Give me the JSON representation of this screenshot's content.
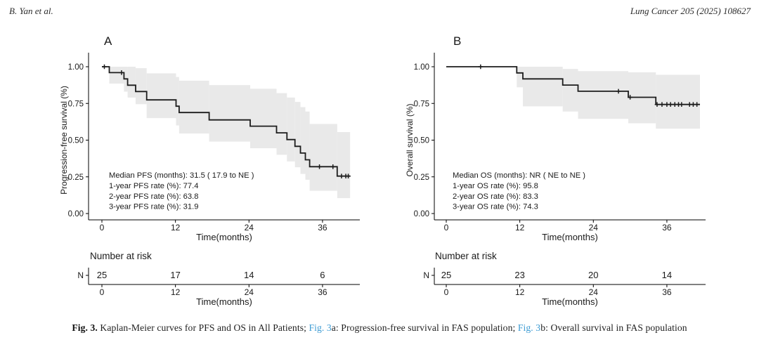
{
  "header": {
    "left": "B. Yan et al.",
    "right": "Lung Cancer 205 (2025) 108627"
  },
  "colors": {
    "curve": "#1c1c1c",
    "band": "#e9e9e9",
    "axis": "#000000",
    "link_blue": "#3d9bd3"
  },
  "chart_data": [
    {
      "type": "line",
      "subtype": "kaplan-meier-step",
      "panel_label": "A",
      "ylabel": "Progression-free survival (%)",
      "xlabel": "Time(months)",
      "xticks": [
        0,
        12,
        24,
        36
      ],
      "yticks": [
        "0.00",
        "0.25",
        "0.50",
        "0.75",
        "1.00"
      ],
      "xlim": [
        0,
        42
      ],
      "ylim": [
        0,
        1
      ],
      "grid": false,
      "annotations": [
        "Median PFS (months): 31.5 ( 17.9 to NE )",
        "1-year PFS rate (%): 77.4",
        "2-year PFS rate (%): 63.8",
        "3-year PFS rate (%): 31.9"
      ],
      "steps": [
        [
          0,
          1.0
        ],
        [
          1.2,
          0.96
        ],
        [
          3.6,
          0.917
        ],
        [
          4.2,
          0.874
        ],
        [
          5.5,
          0.831
        ],
        [
          7.3,
          0.774
        ],
        [
          12.1,
          0.731
        ],
        [
          12.6,
          0.688
        ],
        [
          17.5,
          0.638
        ],
        [
          24.2,
          0.595
        ],
        [
          28.5,
          0.55
        ],
        [
          30.2,
          0.504
        ],
        [
          31.5,
          0.458
        ],
        [
          32.4,
          0.412
        ],
        [
          33.2,
          0.366
        ],
        [
          33.9,
          0.319
        ],
        [
          38.4,
          0.255
        ],
        [
          40.5,
          0.255
        ]
      ],
      "censor_marks": [
        [
          0.4,
          1.0
        ],
        [
          3.2,
          0.96
        ],
        [
          35.5,
          0.319
        ],
        [
          37.7,
          0.319
        ],
        [
          39.1,
          0.255
        ],
        [
          39.8,
          0.255
        ],
        [
          40.2,
          0.255
        ]
      ],
      "confidence_band": [
        [
          1.2,
          3.6,
          0.885,
          1.0
        ],
        [
          3.6,
          4.2,
          0.83,
          1.0
        ],
        [
          4.2,
          5.5,
          0.79,
          1.0
        ],
        [
          5.5,
          7.3,
          0.745,
          0.99
        ],
        [
          7.3,
          12.1,
          0.65,
          0.955
        ],
        [
          12.1,
          12.6,
          0.6,
          0.93
        ],
        [
          12.6,
          17.5,
          0.545,
          0.905
        ],
        [
          17.5,
          24.2,
          0.49,
          0.875
        ],
        [
          24.2,
          28.5,
          0.445,
          0.85
        ],
        [
          28.5,
          30.2,
          0.4,
          0.82
        ],
        [
          30.2,
          31.5,
          0.355,
          0.79
        ],
        [
          31.5,
          32.4,
          0.315,
          0.76
        ],
        [
          32.4,
          33.2,
          0.27,
          0.725
        ],
        [
          33.2,
          33.9,
          0.23,
          0.695
        ],
        [
          33.9,
          38.4,
          0.155,
          0.61
        ],
        [
          38.4,
          40.5,
          0.105,
          0.555
        ]
      ],
      "number_at_risk": {
        "title": "Number at risk",
        "row_label": "N",
        "times": [
          0,
          12,
          24,
          36
        ],
        "counts": [
          "25",
          "17",
          "14",
          "6"
        ],
        "xlabel": "Time(months)"
      }
    },
    {
      "type": "line",
      "subtype": "kaplan-meier-step",
      "panel_label": "B",
      "ylabel": "Overall survival (%)",
      "xlabel": "Time(months)",
      "xticks": [
        0,
        12,
        24,
        36
      ],
      "yticks": [
        "0.00",
        "0.25",
        "0.50",
        "0.75",
        "1.00"
      ],
      "xlim": [
        0,
        42
      ],
      "ylim": [
        0,
        1
      ],
      "grid": false,
      "annotations": [
        "Median OS (months): NR ( NE to NE )",
        "1-year OS rate (%): 95.8",
        "2-year OS rate (%): 83.3",
        "3-year OS rate (%): 74.3"
      ],
      "steps": [
        [
          0,
          1.0
        ],
        [
          11.5,
          0.958
        ],
        [
          12.5,
          0.917
        ],
        [
          19,
          0.875
        ],
        [
          21.5,
          0.833
        ],
        [
          29.7,
          0.792
        ],
        [
          34.2,
          0.743
        ],
        [
          41.4,
          0.743
        ]
      ],
      "censor_marks": [
        [
          5.6,
          1.0
        ],
        [
          28.1,
          0.833
        ],
        [
          30.0,
          0.792
        ],
        [
          34.4,
          0.743
        ],
        [
          35.2,
          0.743
        ],
        [
          36.0,
          0.743
        ],
        [
          36.6,
          0.743
        ],
        [
          37.3,
          0.743
        ],
        [
          37.9,
          0.743
        ],
        [
          38.4,
          0.743
        ],
        [
          39.7,
          0.743
        ],
        [
          40.3,
          0.743
        ],
        [
          40.9,
          0.743
        ]
      ],
      "confidence_band": [
        [
          11.5,
          12.5,
          0.86,
          1.0
        ],
        [
          12.5,
          19,
          0.73,
          1.0
        ],
        [
          19,
          21.5,
          0.695,
          0.985
        ],
        [
          21.5,
          29.7,
          0.645,
          0.97
        ],
        [
          29.7,
          34.2,
          0.615,
          0.962
        ],
        [
          34.2,
          41.4,
          0.578,
          0.945
        ]
      ],
      "number_at_risk": {
        "title": "Number at risk",
        "row_label": "N",
        "times": [
          0,
          12,
          24,
          36
        ],
        "counts": [
          "25",
          "23",
          "20",
          "14"
        ],
        "xlabel": "Time(months)"
      }
    }
  ],
  "caption": {
    "segments": [
      {
        "text": "Fig. 3.",
        "style": "bold"
      },
      {
        "text": " Kaplan-Meier curves for PFS and OS in All Patients; ",
        "style": "normal"
      },
      {
        "text": "Fig. 3",
        "style": "link"
      },
      {
        "text": "a: Progression-free survival in FAS population; ",
        "style": "normal"
      },
      {
        "text": "Fig. 3",
        "style": "link"
      },
      {
        "text": "b: Overall survival in FAS population",
        "style": "normal"
      }
    ]
  }
}
